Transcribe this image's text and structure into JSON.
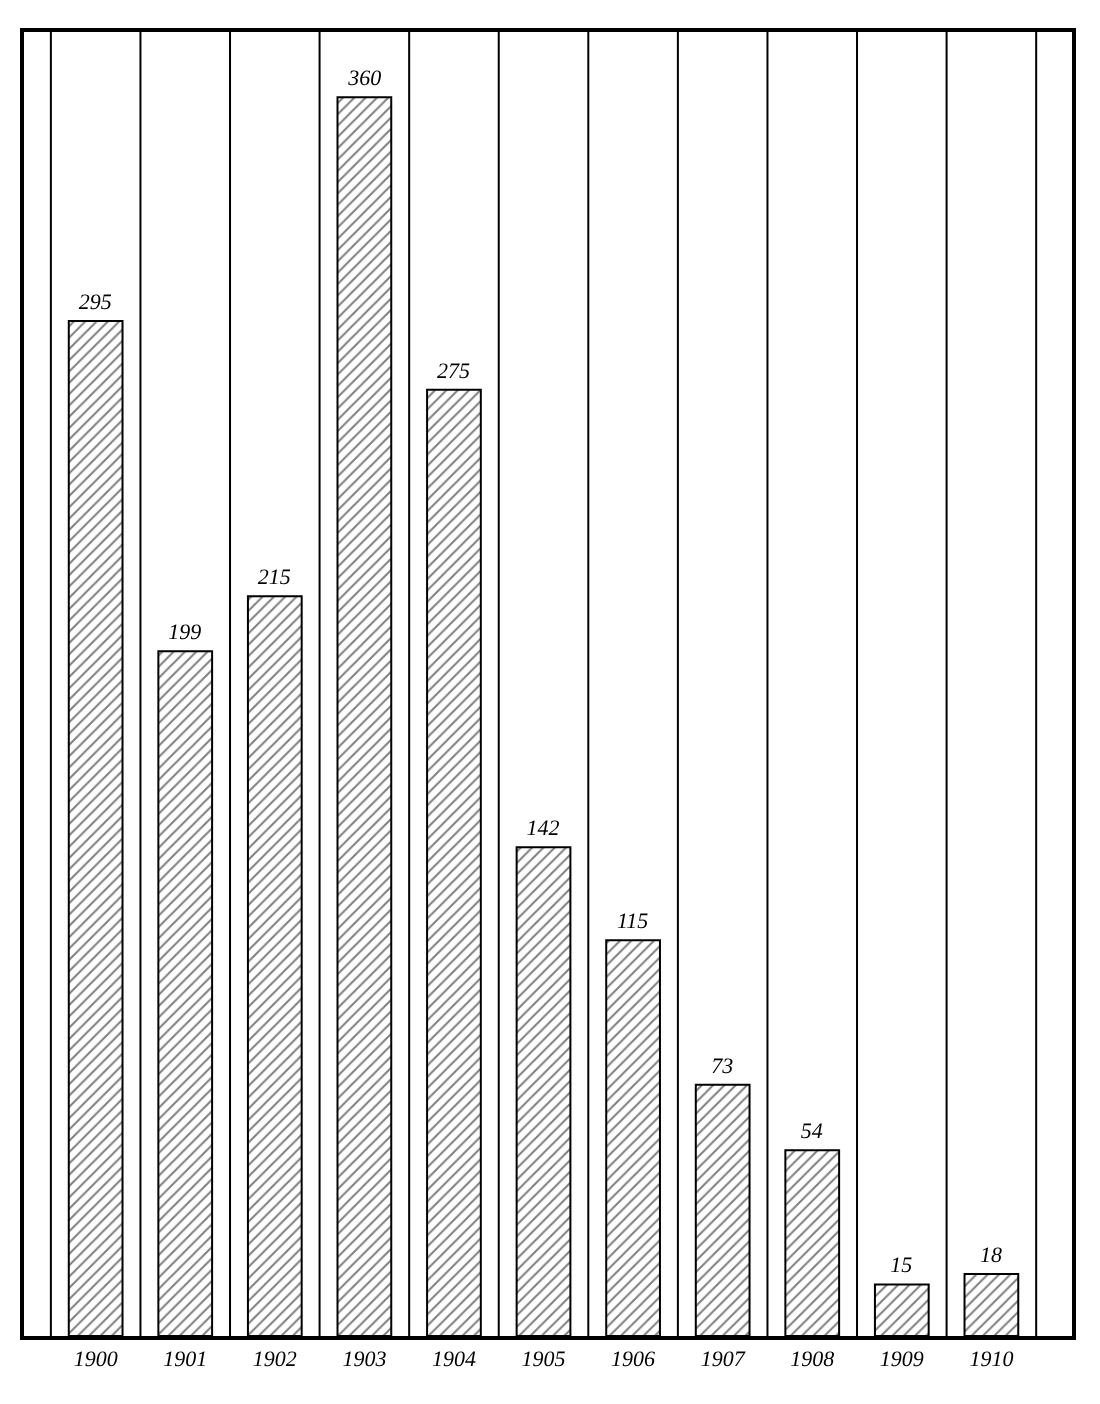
{
  "chart_data": {
    "type": "bar",
    "categories": [
      "1900",
      "1901",
      "1902",
      "1903",
      "1904",
      "1905",
      "1906",
      "1907",
      "1908",
      "1909",
      "1910"
    ],
    "values": [
      295,
      199,
      215,
      360,
      275,
      142,
      115,
      73,
      54,
      15,
      18
    ],
    "color": "#000000",
    "data_labels": true,
    "grid": "x"
  }
}
